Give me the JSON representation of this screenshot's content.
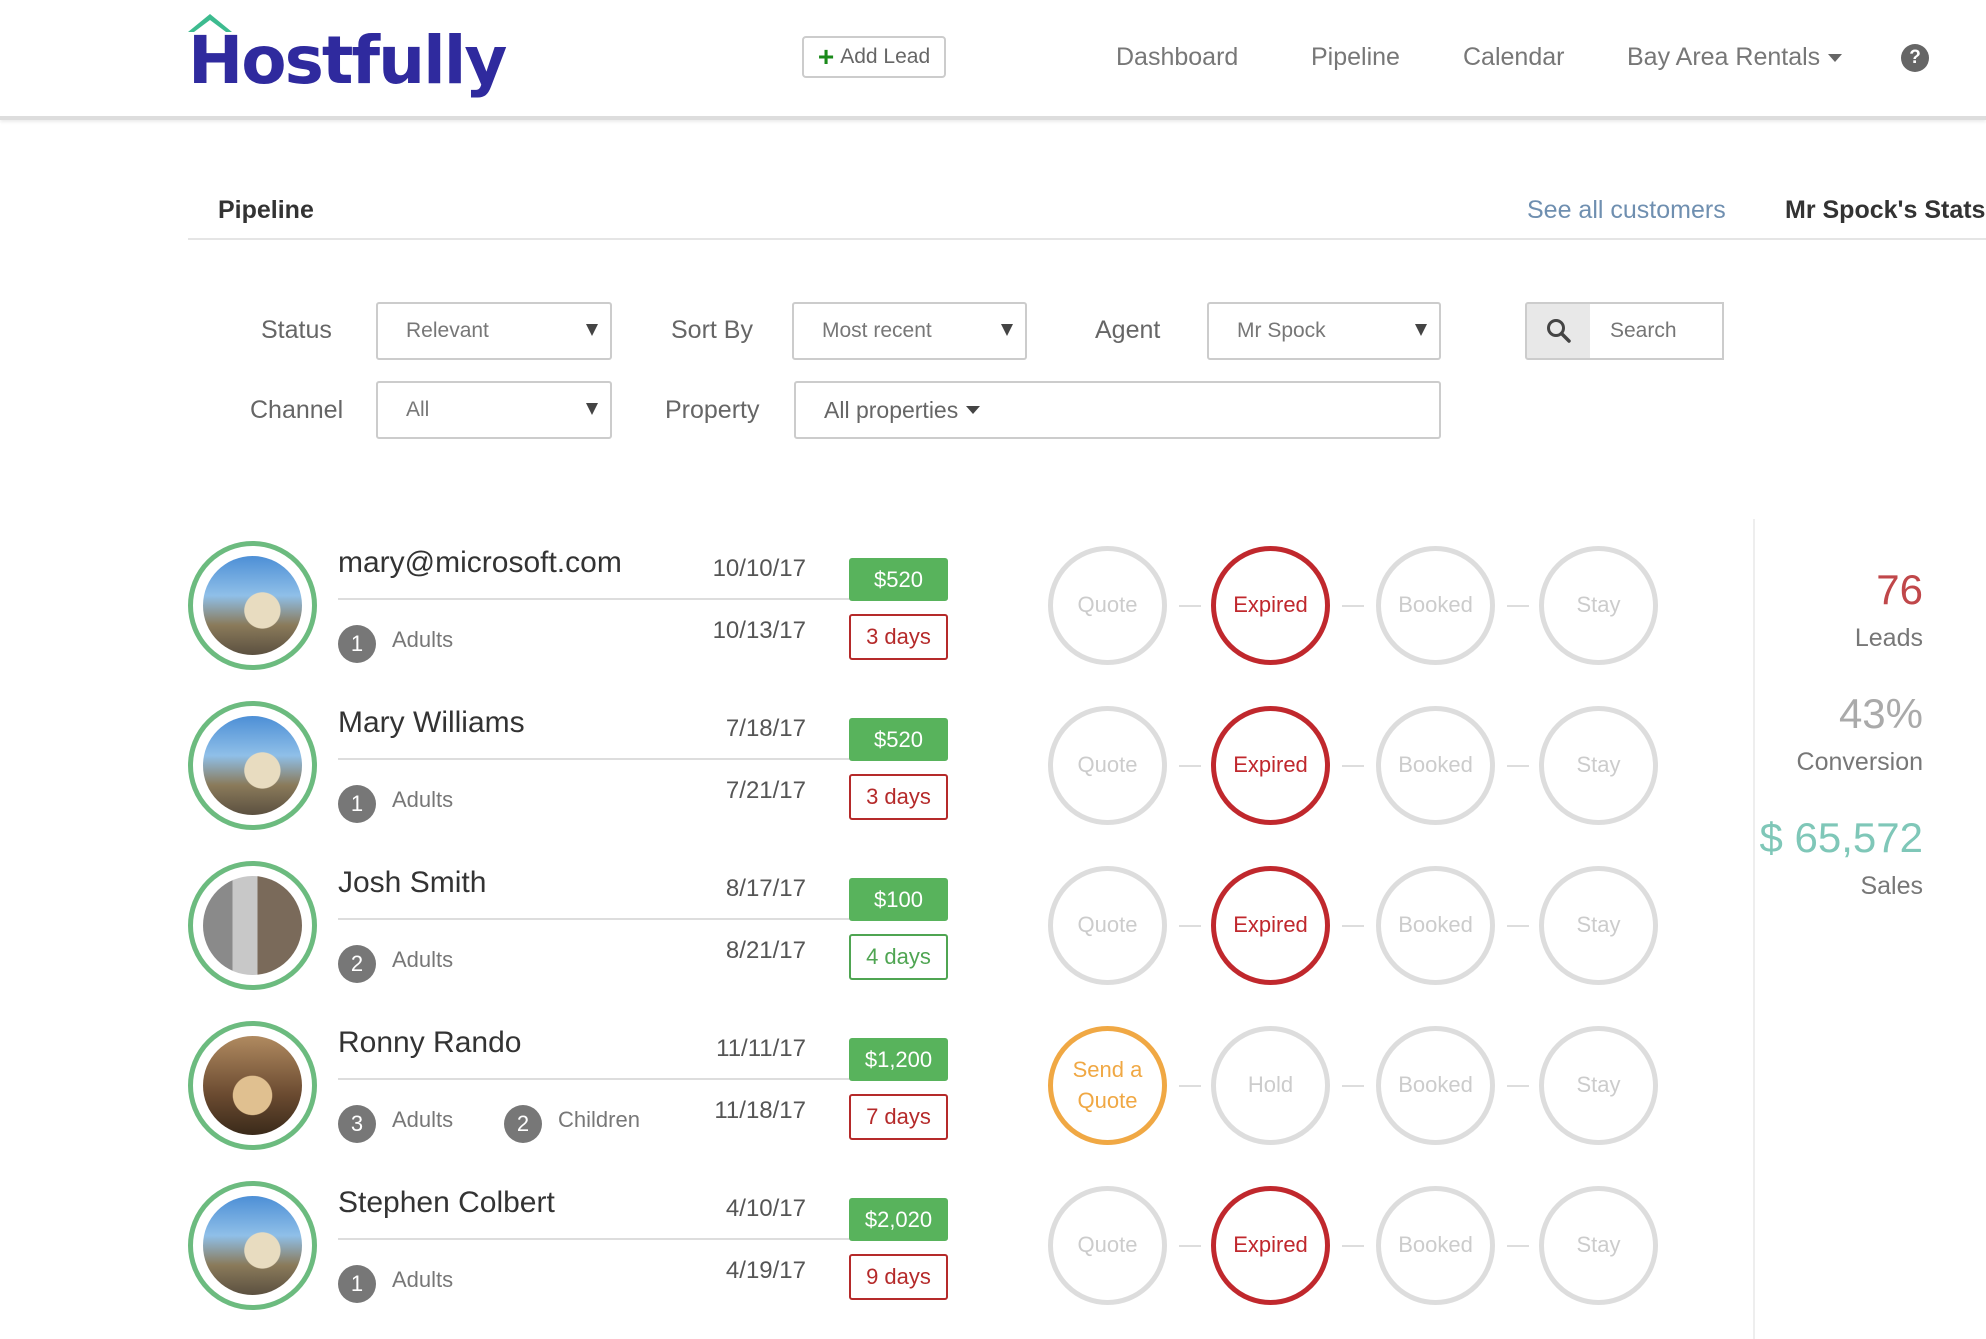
{
  "header": {
    "logo": "Hostfully",
    "add_lead": "Add Lead",
    "nav": [
      "Dashboard",
      "Pipeline",
      "Calendar",
      "Bay Area Rentals"
    ],
    "help": "?"
  },
  "tabs": {
    "pipeline": "Pipeline",
    "see_all": "See all customers",
    "stats": "Mr Spock's Stats"
  },
  "filters": {
    "status_label": "Status",
    "status_value": "Relevant",
    "sort_label": "Sort By",
    "sort_value": "Most recent",
    "agent_label": "Agent",
    "agent_value": "Mr Spock",
    "search_placeholder": "Search",
    "channel_label": "Channel",
    "channel_value": "All",
    "property_label": "Property",
    "property_value": "All properties"
  },
  "leads": [
    {
      "name": "mary@microsoft.com",
      "checkin": "10/10/17",
      "checkout": "10/13/17",
      "price": "$520",
      "days": "3 days",
      "days_color": "#b52a2a",
      "adults": "1",
      "adults_label": "Adults",
      "photo": "house",
      "stages": [
        {
          "label": "Quote",
          "state": "inactive"
        },
        {
          "label": "Expired",
          "state": "expired"
        },
        {
          "label": "Booked",
          "state": "inactive"
        },
        {
          "label": "Stay",
          "state": "inactive"
        }
      ]
    },
    {
      "name": "Mary Williams",
      "checkin": "7/18/17",
      "checkout": "7/21/17",
      "price": "$520",
      "days": "3 days",
      "days_color": "#b52a2a",
      "adults": "1",
      "adults_label": "Adults",
      "photo": "house",
      "stages": [
        {
          "label": "Quote",
          "state": "inactive"
        },
        {
          "label": "Expired",
          "state": "expired"
        },
        {
          "label": "Booked",
          "state": "inactive"
        },
        {
          "label": "Stay",
          "state": "inactive"
        }
      ]
    },
    {
      "name": "Josh Smith",
      "checkin": "8/17/17",
      "checkout": "8/21/17",
      "price": "$100",
      "days": "4 days",
      "days_color": "#4fa552",
      "adults": "2",
      "adults_label": "Adults",
      "photo": "pool",
      "stages": [
        {
          "label": "Quote",
          "state": "inactive"
        },
        {
          "label": "Expired",
          "state": "expired"
        },
        {
          "label": "Booked",
          "state": "inactive"
        },
        {
          "label": "Stay",
          "state": "inactive"
        }
      ]
    },
    {
      "name": "Ronny Rando",
      "checkin": "11/11/17",
      "checkout": "11/18/17",
      "price": "$1,200",
      "days": "7 days",
      "days_color": "#b52a2a",
      "adults": "3",
      "adults_label": "Adults",
      "children": "2",
      "children_label": "Children",
      "photo": "interior",
      "stages": [
        {
          "label": "Send a Quote",
          "state": "action"
        },
        {
          "label": "Hold",
          "state": "inactive"
        },
        {
          "label": "Booked",
          "state": "inactive"
        },
        {
          "label": "Stay",
          "state": "inactive"
        }
      ]
    },
    {
      "name": "Stephen Colbert",
      "checkin": "4/10/17",
      "checkout": "4/19/17",
      "price": "$2,020",
      "days": "9 days",
      "days_color": "#b52a2a",
      "adults": "1",
      "adults_label": "Adults",
      "photo": "house",
      "stages": [
        {
          "label": "Quote",
          "state": "inactive"
        },
        {
          "label": "Expired",
          "state": "expired"
        },
        {
          "label": "Booked",
          "state": "inactive"
        },
        {
          "label": "Stay",
          "state": "inactive"
        }
      ]
    }
  ],
  "stats": {
    "leads_value": "76",
    "leads_label": "Leads",
    "leads_color": "#c0474a",
    "conversion_value": "43%",
    "conversion_label": "Conversion",
    "conversion_color": "#aaaaaa",
    "sales_value": "$ 65,572",
    "sales_label": "Sales",
    "sales_color": "#7fc7b8"
  }
}
